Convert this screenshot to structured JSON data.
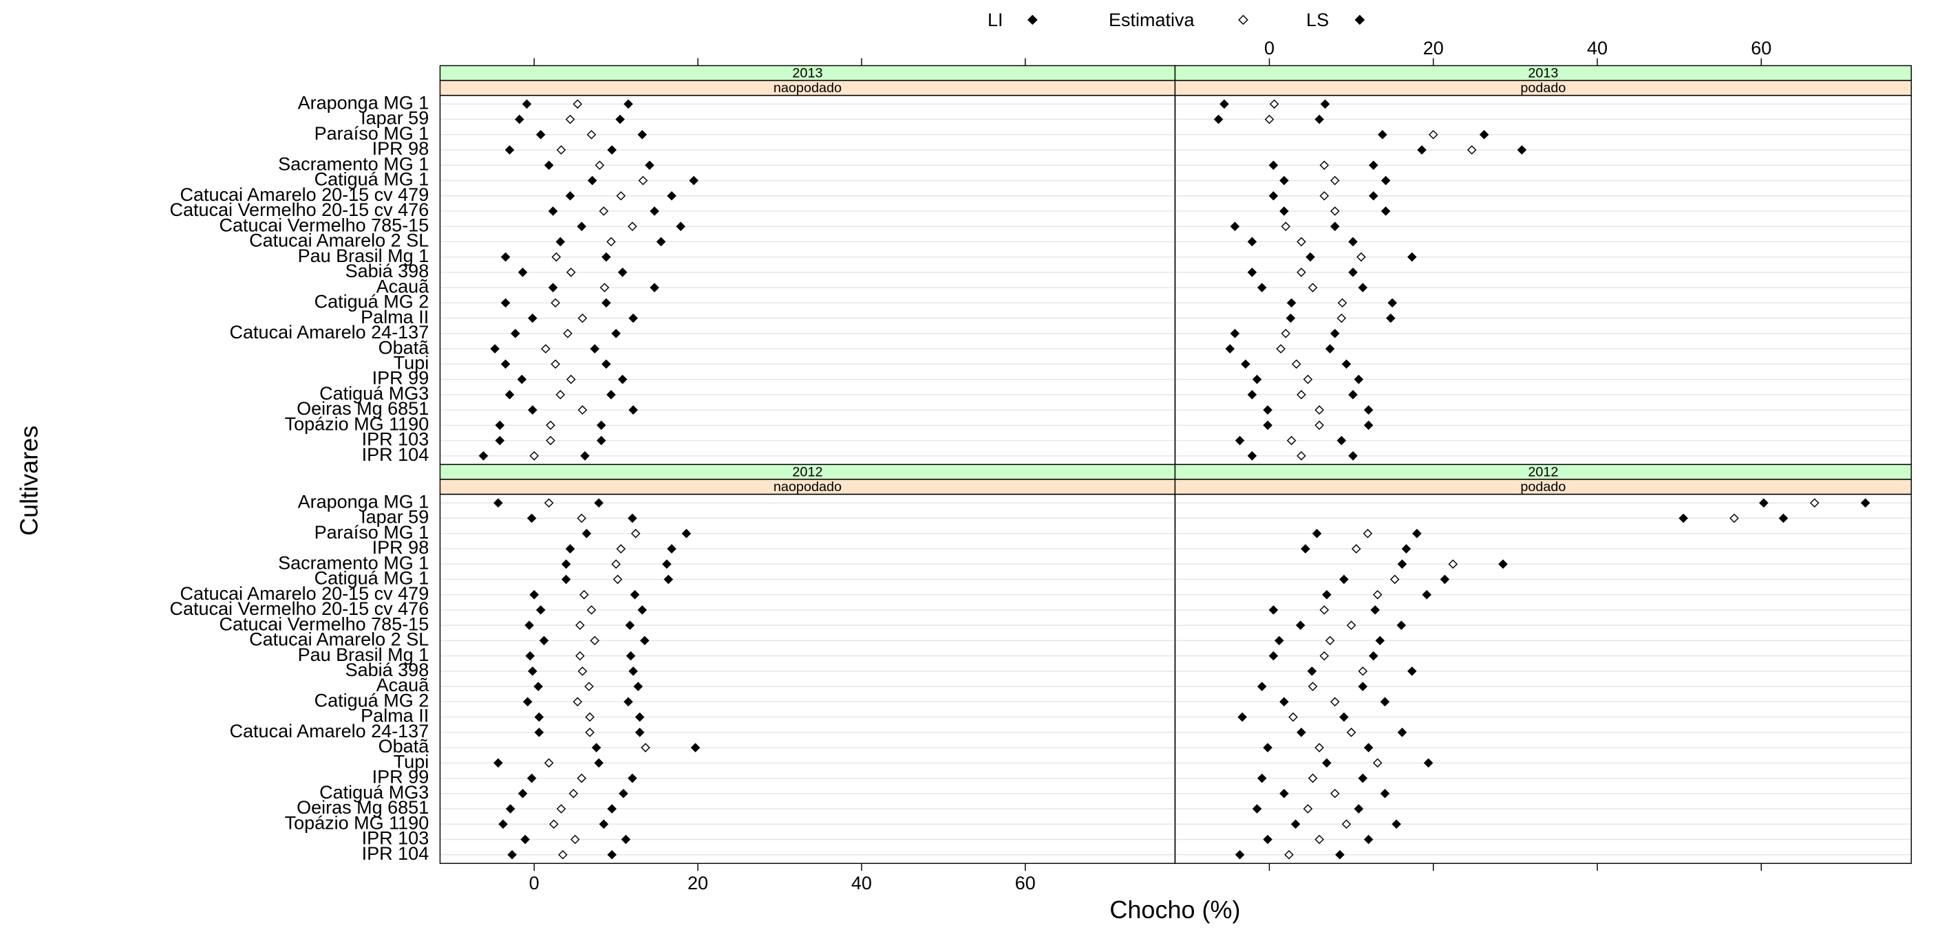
{
  "chart_data": {
    "type": "dotplot",
    "xlabel": "Chocho (%)",
    "ylabel": "Cultivares",
    "xlim": [
      -11.5,
      78.3
    ],
    "xticks": [
      0,
      20,
      40,
      60
    ],
    "categories": [
      "Araponga MG 1",
      "Iapar 59",
      "Paraíso MG 1",
      "IPR 98",
      "Sacramento MG 1",
      "Catiguá MG 1",
      "Catucai Amarelo 20-15 cv 479",
      "Catucai Vermelho 20-15 cv 476",
      "Catucai Vermelho 785-15",
      "Catucai Amarelo 2 SL",
      "Pau Brasil Mg 1",
      "Sabiá 398",
      "Acauã",
      "Catiguá MG 2",
      "Palma II",
      "Catucai Amarelo 24-137",
      "Obatã",
      "Tupi",
      "IPR 99",
      "Catiguá MG3",
      "Oeiras Mg 6851",
      "Topázio MG 1190",
      "IPR 103",
      "IPR 104"
    ],
    "series": [
      {
        "name": "LI",
        "color": "#000000",
        "marker": "filled"
      },
      {
        "name": "Estimativa",
        "color": "#000000",
        "marker": "open"
      },
      {
        "name": "LS",
        "color": "#000000",
        "marker": "filled"
      }
    ],
    "panels": [
      {
        "strip_top": "2013",
        "strip_bottom": "naopodado",
        "values": [
          [
            -0.9,
            -1.8,
            0.8,
            -3.0,
            1.8,
            7.1,
            4.4,
            2.3,
            5.8,
            3.2,
            -3.5,
            -1.4,
            2.3,
            -3.5,
            -0.2,
            -2.3,
            -4.8,
            -3.5,
            -1.5,
            -3.0,
            -0.2,
            -4.2,
            -4.2,
            -6.2
          ],
          [
            5.3,
            4.4,
            7.0,
            3.3,
            8.0,
            13.3,
            10.6,
            8.5,
            12.0,
            9.4,
            2.7,
            4.5,
            8.6,
            2.6,
            5.9,
            4.1,
            1.4,
            2.6,
            4.5,
            3.2,
            5.9,
            2.0,
            2.0,
            0
          ],
          [
            11.5,
            10.5,
            13.2,
            9.5,
            14.1,
            19.5,
            16.8,
            14.7,
            17.9,
            15.5,
            8.8,
            10.8,
            14.7,
            8.8,
            12.1,
            10.0,
            7.4,
            8.8,
            10.8,
            9.4,
            12.1,
            8.2,
            8.2,
            6.2
          ]
        ]
      },
      {
        "strip_top": "2013",
        "strip_bottom": "podado",
        "values": [
          [
            -5.5,
            -6.2,
            13.8,
            18.6,
            0.5,
            1.8,
            0.5,
            1.8,
            -4.2,
            -2.1,
            5.0,
            -2.1,
            -0.9,
            2.7,
            2.6,
            -4.2,
            -4.8,
            -2.9,
            -1.5,
            -2.1,
            -0.2,
            -0.2,
            -3.6,
            -2.1
          ],
          [
            0.6,
            0,
            20.0,
            24.7,
            6.7,
            8.0,
            6.7,
            8.0,
            2.0,
            3.9,
            11.2,
            3.9,
            5.3,
            8.9,
            8.8,
            2.0,
            1.4,
            3.3,
            4.7,
            3.9,
            6.1,
            6.1,
            2.7,
            3.9
          ],
          [
            6.8,
            6.1,
            26.2,
            30.8,
            12.7,
            14.2,
            12.7,
            14.2,
            8.0,
            10.2,
            17.4,
            10.2,
            11.4,
            15.0,
            14.8,
            8.0,
            7.4,
            9.4,
            10.9,
            10.2,
            12.1,
            12.1,
            8.8,
            10.2
          ]
        ]
      },
      {
        "strip_top": "2012",
        "strip_bottom": "naopodado",
        "values": [
          [
            -4.4,
            -0.3,
            6.4,
            4.4,
            3.9,
            3.9,
            0,
            0.8,
            -0.6,
            1.2,
            -0.5,
            -0.2,
            0.5,
            -0.8,
            0.6,
            0.6,
            7.6,
            -4.4,
            -0.3,
            -1.4,
            -2.9,
            -3.8,
            -1.1,
            -2.7
          ],
          [
            1.8,
            5.8,
            12.4,
            10.6,
            10.0,
            10.2,
            6.1,
            7.0,
            5.6,
            7.4,
            5.6,
            5.9,
            6.7,
            5.3,
            6.8,
            6.8,
            13.6,
            1.8,
            5.8,
            4.8,
            3.3,
            2.4,
            5.0,
            3.5
          ],
          [
            7.9,
            12.0,
            18.6,
            16.8,
            16.2,
            16.4,
            12.3,
            13.2,
            11.7,
            13.5,
            11.8,
            12.1,
            12.7,
            11.5,
            12.9,
            12.9,
            19.7,
            7.9,
            12.0,
            10.9,
            9.5,
            8.5,
            11.2,
            9.5
          ]
        ]
      },
      {
        "strip_top": "2012",
        "strip_bottom": "podado",
        "values": [
          [
            60.3,
            50.5,
            5.8,
            4.4,
            16.2,
            9.1,
            7.0,
            0.5,
            3.8,
            1.2,
            0.5,
            5.2,
            -0.9,
            1.8,
            -3.3,
            3.9,
            -0.2,
            7.0,
            -0.9,
            1.8,
            -1.5,
            3.2,
            -0.2,
            -3.6
          ],
          [
            66.5,
            56.7,
            12.0,
            10.6,
            22.4,
            15.3,
            13.2,
            6.7,
            10.0,
            7.4,
            6.7,
            11.4,
            5.3,
            8.0,
            2.9,
            10.0,
            6.1,
            13.2,
            5.3,
            8.0,
            4.7,
            9.4,
            6.1,
            2.4
          ],
          [
            72.7,
            62.7,
            18.0,
            16.7,
            28.5,
            21.4,
            19.2,
            12.9,
            16.1,
            13.5,
            12.7,
            17.4,
            11.4,
            14.1,
            9.1,
            16.2,
            12.1,
            19.4,
            11.4,
            14.1,
            10.9,
            15.5,
            12.1,
            8.6
          ]
        ]
      }
    ]
  }
}
